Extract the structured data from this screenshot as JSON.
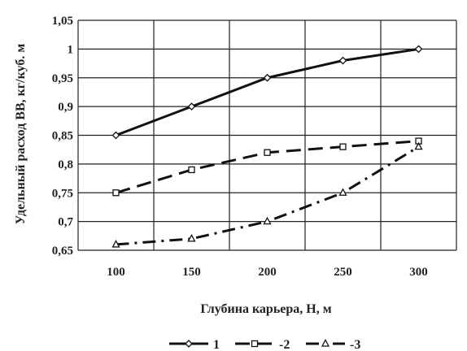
{
  "chart_data": {
    "type": "line",
    "x": [
      100,
      150,
      200,
      250,
      300
    ],
    "xlabel": "Глубина карьера, Н, м",
    "ylabel": "Удельный расход ВВ, кг/куб. м",
    "xlim": [
      75,
      325
    ],
    "ylim": [
      0.65,
      1.05
    ],
    "x_ticks": [
      "100",
      "150",
      "200",
      "250",
      "300"
    ],
    "y_ticks": [
      "0,65",
      "0,7",
      "0,75",
      "0,8",
      "0,85",
      "0,9",
      "0,95",
      "1",
      "1,05"
    ],
    "grid": true,
    "legend_position": "bottom",
    "series": [
      {
        "name": "1",
        "values": [
          0.85,
          0.9,
          0.95,
          0.98,
          1.0
        ],
        "marker": "diamond",
        "line_style": "solid",
        "color": "#111111"
      },
      {
        "name": "2",
        "values": [
          0.75,
          0.79,
          0.82,
          0.83,
          0.84
        ],
        "marker": "square",
        "line_style": "long-dash",
        "color": "#111111"
      },
      {
        "name": "3",
        "values": [
          0.66,
          0.67,
          0.7,
          0.75,
          0.83
        ],
        "marker": "triangle",
        "line_style": "dash-dot",
        "color": "#111111"
      }
    ]
  }
}
